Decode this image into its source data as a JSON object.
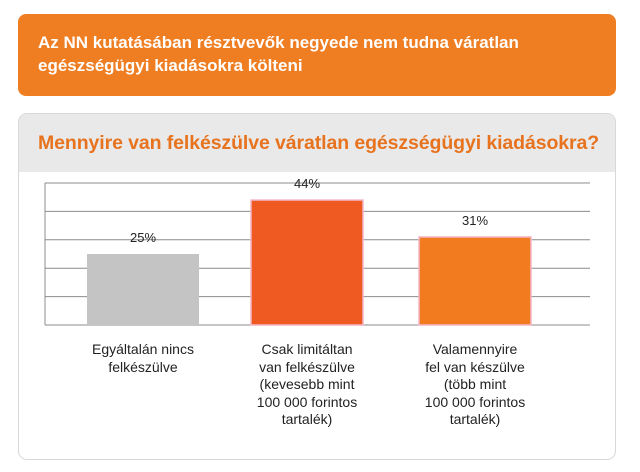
{
  "banner": {
    "line1": "Az NN kutatásában résztvevők negyede nem tudna váratlan",
    "line2": "egészségügyi kiadásokra költeni"
  },
  "panel": {
    "title": "Mennyire van felkészülve váratlan egészségügyi kiadásokra?"
  },
  "colors": {
    "banner": "#ef7d22",
    "title": "#e8731e",
    "header_bg": "#e9e9e9",
    "bar_gray": "#c4c4c4",
    "bar_dark_orange": "#ee5a21",
    "bar_orange": "#f27a1f",
    "bar_outline": "#f4b6c8"
  },
  "chart_data": {
    "type": "bar",
    "title": "",
    "xlabel": "",
    "ylabel": "",
    "ylim": [
      0,
      50
    ],
    "gridlines": true,
    "tick_labels_shown": false,
    "categories": [
      [
        "Egyáltalán nincs",
        "felkészülve"
      ],
      [
        "Csak limitáltan",
        "van felkészülve",
        "(kevesebb mint",
        "100 000 forintos",
        "tartalék)"
      ],
      [
        "Valamennyire",
        "fel van készülve",
        "(több mint",
        "100 000 forintos",
        "tartalék)"
      ]
    ],
    "values": [
      25,
      44,
      31
    ],
    "data_labels": [
      "25%",
      "44%",
      "31%"
    ]
  }
}
